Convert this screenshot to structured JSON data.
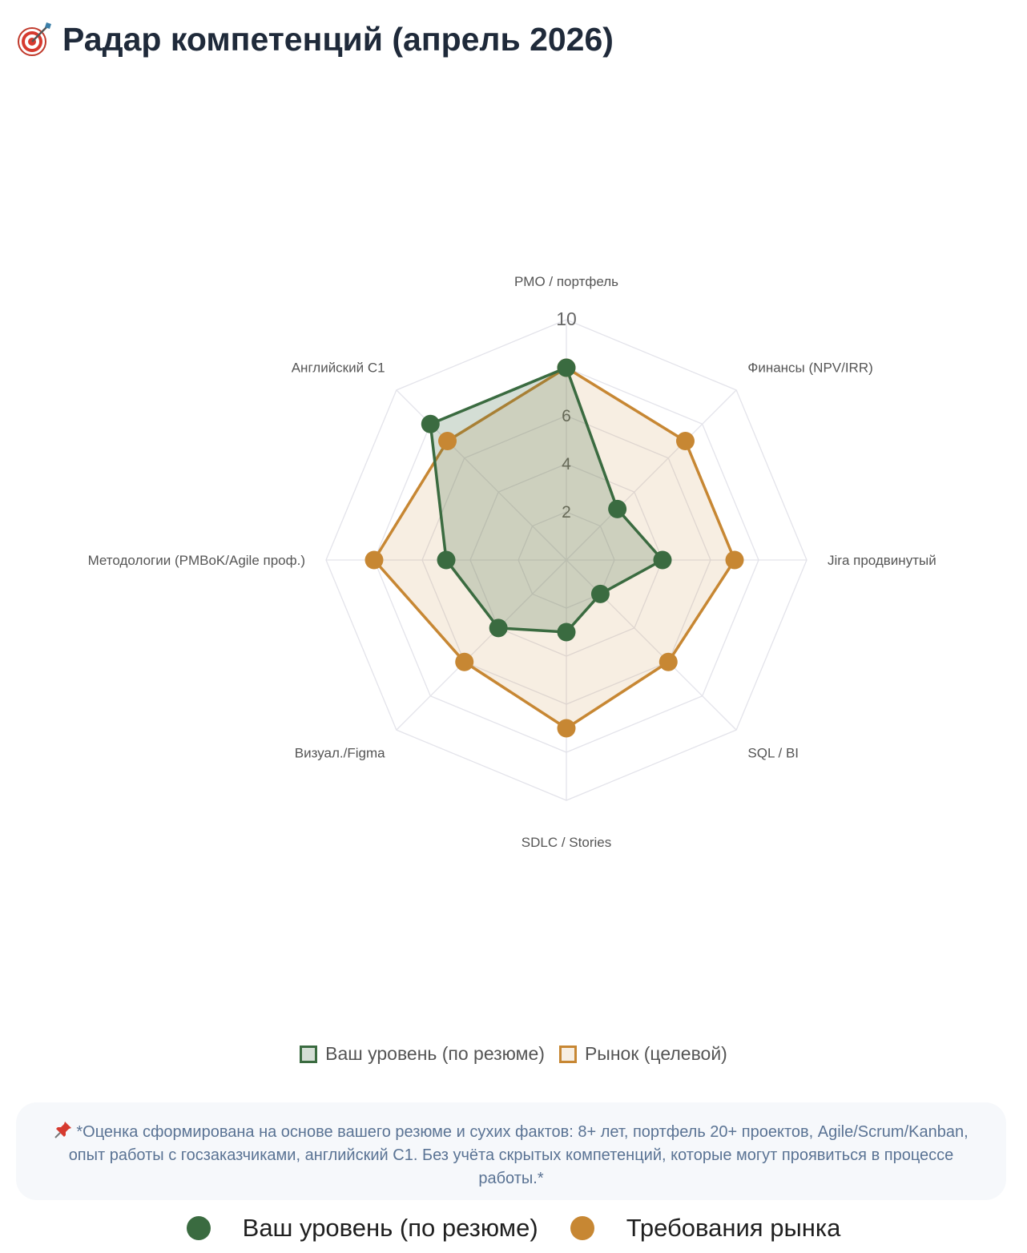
{
  "page": {
    "title": "Радар компетенций (апрель 2026)",
    "title_icon": "target-dart-icon",
    "note_icon": "pushpin-icon",
    "note": "*Оценка сформирована на основе вашего резюме и сухих фактов: 8+ лет, портфель 20+ проектов, Agile/Scrum/Kanban, опыт работы с госзаказчиками, английский C1. Без учёта скрытых компетенций, которые могут проявиться в процессе работы.*"
  },
  "chart_data": {
    "type": "radar",
    "title": "",
    "categories": [
      "PMO / портфель",
      "Финансы (NPV/IRR)",
      "Jira продвинутый",
      "SQL / BI",
      "SDLC / Stories",
      "Визуал./Figma",
      "Методологии (PMBoK/Agile проф.)",
      "Английский C1"
    ],
    "r_range": [
      0,
      10
    ],
    "r_ticks": [
      2,
      4,
      6,
      10
    ],
    "grid_levels": [
      2,
      4,
      6,
      8,
      10
    ],
    "grid": true,
    "legend_position": "bottom",
    "series": [
      {
        "name": "Ваш уровень (по резюме)",
        "values": [
          8,
          3,
          4,
          2,
          3,
          4,
          5,
          8
        ],
        "color": "#3a6b40",
        "fill": "rgba(58,107,64,0.22)"
      },
      {
        "name": "Рынок (целевой)",
        "values": [
          8,
          7,
          7,
          6,
          7,
          6,
          8,
          7
        ],
        "color": "#c78733",
        "fill": "rgba(199,135,51,0.14)"
      }
    ]
  },
  "bottom_legend": [
    {
      "label": "Ваш уровень (по резюме)",
      "color": "#3a6b40"
    },
    {
      "label": "Требования рынка",
      "color": "#c78733"
    }
  ]
}
